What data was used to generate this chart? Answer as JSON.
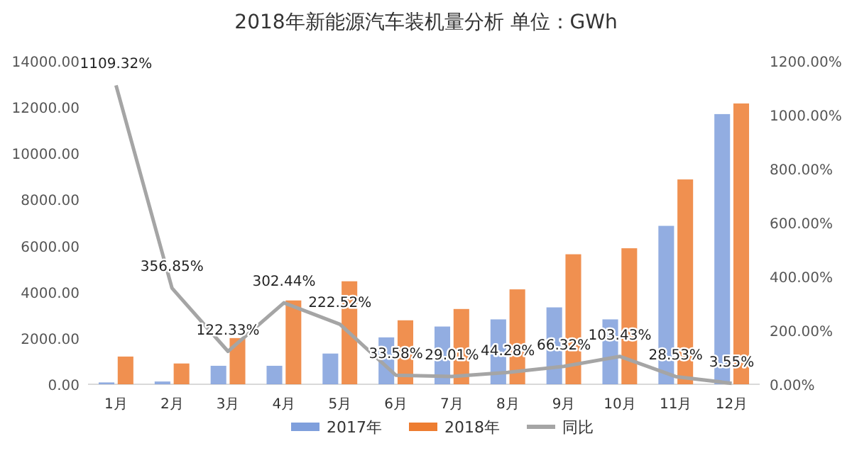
{
  "chart_data": {
    "type": "bar",
    "title": "2018年新能源汽车装机量分析    单位：GWh",
    "categories": [
      "1月",
      "2月",
      "3月",
      "4月",
      "5月",
      "6月",
      "7月",
      "8月",
      "9月",
      "10月",
      "11月",
      "12月"
    ],
    "series": [
      {
        "name": "2017年",
        "color": "#7f9fdc",
        "values": [
          80,
          120,
          800,
          800,
          1330,
          2030,
          2500,
          2810,
          3330,
          2810,
          6860,
          11700
        ]
      },
      {
        "name": "2018年",
        "color": "#ed7d31",
        "values": [
          1200,
          900,
          2000,
          3630,
          4460,
          2770,
          3260,
          4110,
          5630,
          5890,
          8870,
          12160
        ]
      },
      {
        "name": "同比",
        "type": "line",
        "axis": "y2",
        "color": "#a5a5a5",
        "values": [
          1109.32,
          356.85,
          122.33,
          302.44,
          222.52,
          33.58,
          29.01,
          44.28,
          66.32,
          103.43,
          28.53,
          3.55
        ],
        "value_labels": [
          "1109.32%",
          "356.85%",
          "122.33%",
          "302.44%",
          "222.52%",
          "33.58%",
          "29.01%",
          "44.28%",
          "66.32%",
          "103.43%",
          "28.53%",
          "3.55%"
        ]
      }
    ],
    "ylim": [
      0,
      14000
    ],
    "yticks": [
      {
        "value": 0,
        "label": "0.00"
      },
      {
        "value": 2000,
        "label": "2000.00"
      },
      {
        "value": 4000,
        "label": "4000.00"
      },
      {
        "value": 6000,
        "label": "6000.00"
      },
      {
        "value": 8000,
        "label": "8000.00"
      },
      {
        "value": 10000,
        "label": "10000.00"
      },
      {
        "value": 12000,
        "label": "12000.00"
      },
      {
        "value": 14000,
        "label": "14000.00"
      }
    ],
    "y2lim": [
      0,
      1200
    ],
    "y2ticks": [
      {
        "value": 0,
        "label": "0.00%"
      },
      {
        "value": 200,
        "label": "200.00%"
      },
      {
        "value": 400,
        "label": "400.00%"
      },
      {
        "value": 600,
        "label": "600.00%"
      },
      {
        "value": 800,
        "label": "800.00%"
      },
      {
        "value": 1000,
        "label": "1000.00%"
      },
      {
        "value": 1200,
        "label": "1200.00%"
      }
    ],
    "grid": false,
    "legend": "bottom"
  }
}
